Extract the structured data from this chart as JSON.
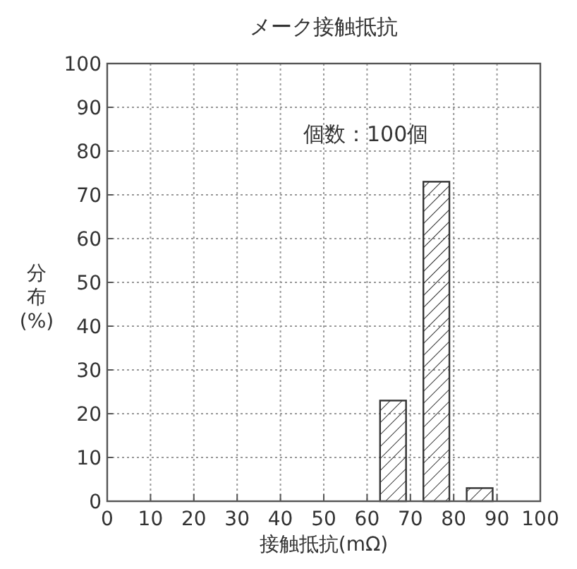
{
  "chart_data": {
    "type": "bar",
    "title": "メーク接触抵抗",
    "xlabel": "接触抵抗(mΩ)",
    "ylabel": "分布(%)",
    "x": [
      66,
      76,
      86
    ],
    "values": [
      23,
      73,
      3
    ],
    "color": "#333333",
    "xlim": [
      0,
      100
    ],
    "xticks": [
      0,
      10,
      20,
      30,
      40,
      50,
      60,
      70,
      80,
      90,
      100
    ],
    "ylim": [
      0,
      100
    ],
    "yticks": [
      0,
      10,
      20,
      30,
      40,
      50,
      60,
      70,
      80,
      90,
      100
    ],
    "grid": true,
    "annotations": [
      "個数：100個"
    ]
  }
}
